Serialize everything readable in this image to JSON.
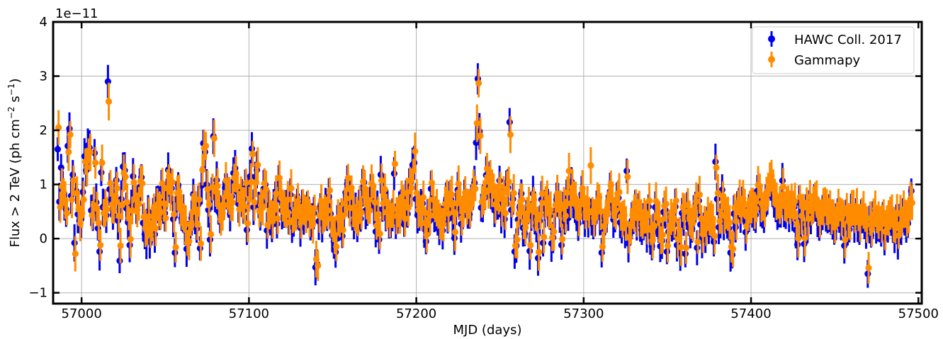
{
  "chart_data": {
    "type": "scatter",
    "title": "",
    "xlabel": "MJD (days)",
    "ylabel_main": "Flux > 2 TeV (ph cm",
    "ylabel_sup1": "−2",
    "ylabel_mid": " s",
    "ylabel_sup2": "−1",
    "ylabel_end": ")",
    "y_offset_text": "1e−11",
    "xlim": [
      56983,
      57502
    ],
    "ylim": [
      -1.2,
      4.0
    ],
    "grid": true,
    "legend_position": "top-right",
    "x_ticks": [
      57000,
      57100,
      57200,
      57300,
      57400,
      57500
    ],
    "x_tick_labels": [
      "57000",
      "57100",
      "57200",
      "57300",
      "57400",
      "57500"
    ],
    "y_ticks": [
      -1,
      0,
      1,
      2,
      3,
      4
    ],
    "y_tick_labels": [
      "−1",
      "0",
      "1",
      "2",
      "3",
      "4"
    ],
    "x_start": 56986,
    "x_step": 1,
    "series": [
      {
        "name": "HAWC Coll. 2017",
        "color": "#0000ee",
        "values": [
          1.65,
          0.68,
          1.31,
          0.91,
          0.62,
          0.54,
          1.71,
          2.03,
          0.79,
          1.18,
          -0.08,
          0.88,
          0.45,
          0.33,
          0.36,
          0.86,
          1.52,
          1.26,
          1.72,
          1.68,
          0.52,
          0.48,
          1.58,
          0.67,
          0.19,
          -0.24,
          1.22,
          0.58,
          0.62,
          0.43,
          2.9,
          0.91,
          0.72,
          0.44,
          0.68,
          1.08,
          0.33,
          -0.41,
          0.73,
          1.33,
          1.26,
          0.56,
          0.3,
          -0.12,
          0.61,
          1.15,
          0.82,
          0.62,
          0.73,
          0.95,
          1.13,
          0.29,
          0.08,
          -0.05,
          0.5,
          -0.06,
          0.2,
          0.47,
          0.08,
          0.72,
          0.63,
          0.38,
          0.92,
          0.53,
          0.47,
          0.82,
          1.27,
          0.97,
          0.93,
          0.36,
          -0.26,
          0.72,
          0.99,
          0.62,
          0.38,
          0.47,
          0.15,
          -0.19,
          0.03,
          0.18,
          0.38,
          0.82,
          0.42,
          0.18,
          0.63,
          -0.18,
          0.98,
          1.76,
          1.6,
          1.0,
          0.53,
          -0.02,
          0.83,
          1.89,
          0.76,
          1.08,
          0.5,
          0.45,
          0.38,
          0.72,
          0.94,
          0.87,
          0.68,
          0.45,
          0.78,
          1.21,
          1.3,
          0.87,
          0.64,
          0.72,
          0.75,
          0.52,
          0.93,
          0.16,
          0.84,
          1.15,
          1.66,
          0.58,
          1.14,
          1.27,
          0.62,
          0.5,
          0.68,
          0.92,
          1.0,
          0.15,
          0.61,
          0.38,
          0.25,
          0.62,
          0.72,
          0.27,
          1.01,
          0.84,
          0.52,
          0.44,
          0.55,
          0.63,
          0.41,
          0.81,
          0.23,
          0.36,
          0.51,
          0.58,
          0.58,
          0.2,
          0.68,
          0.42,
          0.54,
          0.53,
          0.49,
          0.29,
          0.34,
          0.47,
          -0.53,
          -0.47,
          0.32,
          0.6,
          0.28,
          0.37,
          0.59,
          0.41,
          0.78,
          0.46,
          0.06,
          -0.05,
          -0.25,
          0.28,
          0.21,
          0.32,
          0.05,
          0.53,
          0.85,
          1.01,
          0.66,
          0.83,
          0.46,
          0.29,
          0.52,
          0.21,
          0.56,
          0.37,
          0.94,
          1.04,
          0.52,
          0.5,
          0.61,
          0.9,
          0.88,
          0.56,
          0.13,
          0.55,
          -0.02,
          1.18,
          0.54,
          0.82,
          0.38,
          0.56,
          0.28,
          0.34,
          0.44,
          1.2,
          0.32,
          0.37,
          0.53,
          0.66,
          0.59,
          0.26,
          0.73,
          0.46,
          0.96,
          1.05,
          1.36,
          1.4,
          0.73,
          0.43,
          0.41,
          0.57,
          0.65,
          0.18,
          -0.05,
          0.38,
          0.32,
          0.92,
          0.61,
          0.43,
          0.46,
          0.34,
          0.22,
          0.36,
          0.15,
          0.55,
          0.69,
          0.35,
          0.72,
          0.72,
          0.38,
          0.01,
          0.55,
          0.9,
          0.62,
          0.27,
          0.41,
          0.74,
          0.69,
          0.53,
          0.45,
          0.66,
          0.82,
          1.03,
          1.77,
          2.95,
          1.98,
          0.57,
          0.65,
          0.75,
          1.17,
          1.0,
          1.08,
          0.82,
          0.86,
          0.52,
          0.65,
          0.68,
          1.07,
          0.44,
          0.74,
          0.36,
          1.03,
          0.94,
          2.15,
          0.53,
          0.73,
          -0.24,
          -0.13,
          0.35,
          0.58,
          0.83,
          0.2,
          0.09,
          0.36,
          0.51,
          -0.23,
          0.42,
          0.83,
          0.38,
          0.24,
          -0.36,
          0.33,
          0.72,
          -0.08,
          0.55,
          0.64,
          0.57,
          0.42,
          -0.09,
          0.02,
          0.51,
          0.72,
          0.73,
          0.44,
          -0.12,
          0.52,
          0.31,
          0.74,
          0.38,
          0.76,
          1.05,
          0.71,
          0.59,
          0.45,
          0.28,
          0.58,
          0.82,
          0.52,
          0.38,
          0.54,
          0.37,
          0.48,
          0.4,
          0.27,
          0.37,
          0.58,
          0.65,
          0.39,
          -0.26,
          0.12,
          0.3,
          0.46,
          0.63,
          0.87,
          0.6,
          0.35,
          0.41,
          0.72,
          0.75,
          0.3,
          0.25,
          0.32,
          0.17,
          1.25,
          -0.09,
          0.12,
          0.33,
          0.36,
          0.57,
          0.27,
          0.53,
          0.27,
          0.16,
          0.31,
          0.29,
          0.09,
          0.59,
          0.05,
          -0.14,
          0.12,
          0.58,
          0.35,
          0.24,
          -0.14,
          -0.04,
          0.49,
          0.53,
          -0.24,
          0.13,
          0.29,
          0.29,
          0.25,
          0.59,
          -0.12,
          0.05,
          -0.27,
          0.47,
          0.39,
          -0.28,
          0.51,
          0.27,
          0.17,
          0.18,
          0.46,
          0.58,
          -0.17,
          0.7,
          0.26,
          -0.03,
          0.21,
          0.08,
          0.35,
          0.25,
          0.26,
          0.26,
          -0.06,
          1.42,
          0.73,
          0.21,
          0.33,
          0.9,
          0.31,
          0.36,
          0.35,
          0.19,
          -0.26,
          -0.3,
          0.46,
          0.21,
          0.55,
          0.63,
          0.41,
          0.63,
          0.53,
          0.12,
          0.34,
          0.47,
          0.5,
          0.55,
          0.41,
          0.44,
          0.88,
          0.86,
          0.54,
          0.48,
          0.44,
          0.74,
          0.79,
          0.98,
          1.05,
          0.83,
          0.73,
          0.58,
          0.49,
          0.51,
          0.51,
          1.07,
          0.49,
          0.52,
          0.57,
          0.47,
          0.58,
          0.49,
          0.58,
          0.16,
          -0.11,
          0.66,
          0.31,
          0.46,
          -0.1,
          0.55,
          0.26,
          0.66,
          0.43,
          0.52,
          0.66,
          0.62,
          0.36,
          0.26,
          0.38,
          0.48,
          0.57,
          0.47,
          0.35,
          0.47,
          0.29,
          0.33,
          0.14,
          0.31,
          0.46,
          0.43,
          0.28,
          0.35,
          -0.13,
          0.45,
          0.22,
          0.17,
          0.48,
          0.46,
          0.27,
          0.48,
          0.27,
          0.18,
          0.41,
          0.42,
          0.28,
          0.15,
          -0.65,
          0.26,
          0.06,
          0.34,
          0.44,
          0.25,
          0.23,
          0.26,
          0.16,
          0.37,
          0.02,
          0.23,
          0.27,
          0.36,
          0.4,
          0.15,
          0.08,
          0.37,
          -0.05,
          0.35,
          0.2,
          0.43,
          0.35,
          0.26,
          0.28,
          0.62,
          0.88
        ]
      },
      {
        "name": "Gammapy",
        "color": "#ff8c00",
        "values": [
          2.05,
          0.58,
          0.96,
          0.86,
          0.71,
          0.47,
          1.6,
          1.92,
          0.72,
          1.07,
          -0.28,
          0.84,
          0.54,
          0.28,
          0.47,
          0.72,
          1.42,
          1.32,
          1.62,
          1.59,
          0.43,
          0.62,
          1.4,
          0.55,
          0.29,
          -0.12,
          1.4,
          0.47,
          0.57,
          0.54,
          2.53,
          1.02,
          0.63,
          0.55,
          0.79,
          0.93,
          0.42,
          -0.13,
          0.62,
          1.21,
          1.14,
          0.67,
          0.38,
          -0.01,
          0.52,
          1.04,
          0.73,
          0.53,
          0.64,
          1.06,
          1.02,
          0.4,
          0.19,
          0.12,
          0.41,
          0.07,
          0.29,
          0.56,
          0.19,
          0.63,
          0.54,
          0.49,
          1.02,
          0.65,
          0.38,
          0.93,
          1.15,
          0.86,
          1.04,
          0.45,
          -0.16,
          0.84,
          0.87,
          0.53,
          0.49,
          0.38,
          0.27,
          -0.08,
          -0.05,
          0.28,
          0.49,
          0.73,
          0.54,
          0.27,
          0.72,
          -0.09,
          1.27,
          1.67,
          1.71,
          0.91,
          0.63,
          0.08,
          0.95,
          1.85,
          0.87,
          0.97,
          0.59,
          0.36,
          0.48,
          0.62,
          1.07,
          0.78,
          0.79,
          0.55,
          0.67,
          1.12,
          1.19,
          0.96,
          0.54,
          0.83,
          0.66,
          0.61,
          1.03,
          0.28,
          0.73,
          1.04,
          1.56,
          0.67,
          1.04,
          1.36,
          0.51,
          0.62,
          0.57,
          1.02,
          0.91,
          0.25,
          0.52,
          0.49,
          0.35,
          0.53,
          0.83,
          0.37,
          1.12,
          0.75,
          0.61,
          0.55,
          0.46,
          0.72,
          0.3,
          0.93,
          0.34,
          0.48,
          0.42,
          0.69,
          0.49,
          0.31,
          0.59,
          0.53,
          0.44,
          0.64,
          0.38,
          0.4,
          0.26,
          0.56,
          -0.38,
          -0.5,
          0.43,
          0.69,
          0.39,
          0.48,
          0.5,
          0.52,
          0.89,
          0.37,
          0.17,
          0.06,
          -0.15,
          0.39,
          0.32,
          0.43,
          0.16,
          0.65,
          0.74,
          1.12,
          0.57,
          0.94,
          0.56,
          0.39,
          0.43,
          0.32,
          0.65,
          0.48,
          1.05,
          0.93,
          0.63,
          0.61,
          0.52,
          1.02,
          0.97,
          0.67,
          0.24,
          0.44,
          0.09,
          1.07,
          0.65,
          0.91,
          0.49,
          0.47,
          0.37,
          0.43,
          0.55,
          1.38,
          0.42,
          0.48,
          0.42,
          0.77,
          0.68,
          0.37,
          0.84,
          0.57,
          1.07,
          0.94,
          1.25,
          1.61,
          0.84,
          0.53,
          0.51,
          0.47,
          0.76,
          0.29,
          0.07,
          0.47,
          0.43,
          1.03,
          0.72,
          0.54,
          0.57,
          0.45,
          0.32,
          0.27,
          0.26,
          0.64,
          0.8,
          0.46,
          0.83,
          0.81,
          0.49,
          0.12,
          0.65,
          1.01,
          0.73,
          0.38,
          0.52,
          0.85,
          0.59,
          0.64,
          0.55,
          0.77,
          0.93,
          0.92,
          2.13,
          2.87,
          1.9,
          0.68,
          0.76,
          0.86,
          1.29,
          0.89,
          1.19,
          0.93,
          0.97,
          0.63,
          0.76,
          0.79,
          0.96,
          0.55,
          0.85,
          0.47,
          0.92,
          1.05,
          1.92,
          0.64,
          0.84,
          -0.13,
          -0.02,
          0.46,
          0.69,
          0.72,
          0.31,
          0.2,
          0.47,
          0.62,
          -0.12,
          0.53,
          0.72,
          0.49,
          0.35,
          -0.25,
          0.44,
          0.83,
          0.03,
          0.66,
          0.75,
          0.46,
          0.53,
          0.02,
          0.13,
          0.62,
          0.83,
          0.62,
          0.55,
          -0.01,
          0.63,
          0.42,
          0.85,
          1.25,
          0.65,
          0.94,
          0.82,
          0.7,
          0.56,
          0.39,
          0.69,
          0.93,
          0.63,
          0.49,
          0.65,
          0.48,
          1.35,
          0.51,
          0.38,
          0.48,
          0.69,
          0.76,
          0.5,
          -0.15,
          0.23,
          0.41,
          0.57,
          0.74,
          0.98,
          0.71,
          0.46,
          0.52,
          0.83,
          0.86,
          0.41,
          0.36,
          0.43,
          0.28,
          1.14,
          0.02,
          0.23,
          0.44,
          0.47,
          0.68,
          0.38,
          0.64,
          0.38,
          0.27,
          0.42,
          0.4,
          0.2,
          0.7,
          0.16,
          -0.03,
          0.23,
          0.69,
          0.46,
          0.35,
          -0.03,
          0.07,
          0.6,
          0.64,
          -0.13,
          0.24,
          0.4,
          0.4,
          0.36,
          0.7,
          -0.01,
          0.16,
          -0.16,
          0.58,
          0.5,
          -0.17,
          0.62,
          0.38,
          0.28,
          0.29,
          0.57,
          0.69,
          -0.06,
          0.81,
          0.37,
          0.08,
          0.32,
          0.19,
          0.46,
          0.36,
          0.37,
          0.37,
          0.05,
          1.31,
          0.84,
          0.32,
          0.44,
          0.79,
          0.42,
          0.47,
          0.46,
          0.3,
          -0.15,
          -0.19,
          0.57,
          0.32,
          0.66,
          0.74,
          0.52,
          0.74,
          0.64,
          0.23,
          0.45,
          0.58,
          0.61,
          0.66,
          0.52,
          0.55,
          0.99,
          0.97,
          0.65,
          0.59,
          0.55,
          0.85,
          0.9,
          1.09,
          1.16,
          0.94,
          0.84,
          0.69,
          0.6,
          0.62,
          0.62,
          0.96,
          0.6,
          0.63,
          0.68,
          0.58,
          0.69,
          0.6,
          0.69,
          0.27,
          0.0,
          0.77,
          0.42,
          0.57,
          0.01,
          0.66,
          0.37,
          0.77,
          0.54,
          0.63,
          0.77,
          0.73,
          0.47,
          0.37,
          0.49,
          0.59,
          0.68,
          0.58,
          0.46,
          0.58,
          0.4,
          0.44,
          0.25,
          0.42,
          0.57,
          0.54,
          0.39,
          0.46,
          -0.02,
          0.56,
          0.33,
          0.28,
          0.59,
          0.57,
          0.38,
          0.59,
          0.38,
          0.29,
          0.52,
          0.53,
          0.39,
          0.26,
          -0.54,
          0.37,
          0.17,
          0.45,
          0.55,
          0.36,
          0.34,
          0.37,
          0.27,
          0.48,
          0.13,
          0.34,
          0.38,
          0.47,
          0.51,
          0.26,
          0.19,
          0.48,
          0.06,
          0.46,
          0.31,
          0.54,
          0.46,
          0.37,
          0.39,
          0.73,
          0.66
        ]
      }
    ]
  },
  "legend": [
    {
      "label": "HAWC Coll. 2017",
      "color": "#0000ee"
    },
    {
      "label": "Gammapy",
      "color": "#ff8c00"
    }
  ]
}
